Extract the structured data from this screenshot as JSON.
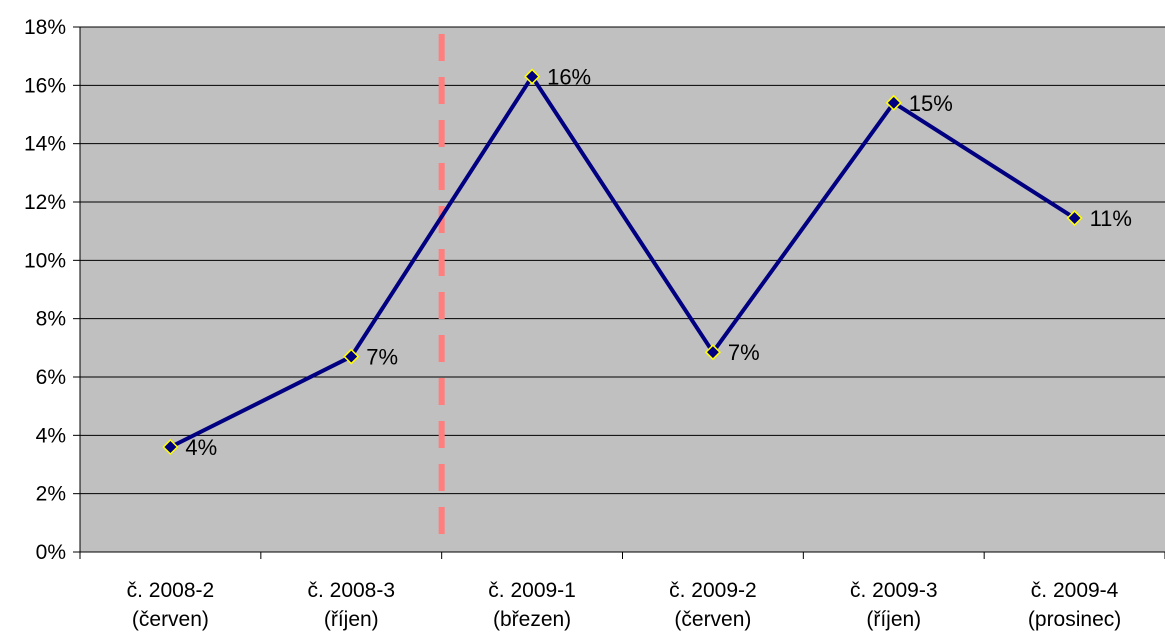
{
  "chart_data": {
    "type": "line",
    "title": "",
    "xlabel": "",
    "ylabel": "",
    "categories": [
      [
        "č. 2008-2",
        "(červen)"
      ],
      [
        "č. 2008-3",
        "(říjen)"
      ],
      [
        "č. 2009-1",
        "(březen)"
      ],
      [
        "č. 2009-2",
        "(červen)"
      ],
      [
        "č. 2009-3",
        "(říjen)"
      ],
      [
        "č. 2009-4",
        "(prosinec)"
      ]
    ],
    "series": [
      {
        "values": [
          3.6,
          6.7,
          16.3,
          6.85,
          15.4,
          11.45
        ],
        "data_labels": [
          "4%",
          "7%",
          "16%",
          "7%",
          "15%",
          "11%"
        ],
        "color": "#000080",
        "marker_fill": "#000080",
        "marker_stroke": "#FFFF00"
      }
    ],
    "ylim": [
      0,
      18
    ],
    "yticks": [
      0,
      2,
      4,
      6,
      8,
      10,
      12,
      14,
      16,
      18
    ],
    "ytick_labels": [
      "0%",
      "2%",
      "4%",
      "6%",
      "8%",
      "10%",
      "12%",
      "14%",
      "16%",
      "18%"
    ],
    "grid": true,
    "plot_background": "#C0C0C0",
    "legend": "none",
    "reference_line": {
      "between_categories": [
        1,
        2
      ],
      "style": "dashed",
      "color": "#FF7F7F"
    }
  }
}
